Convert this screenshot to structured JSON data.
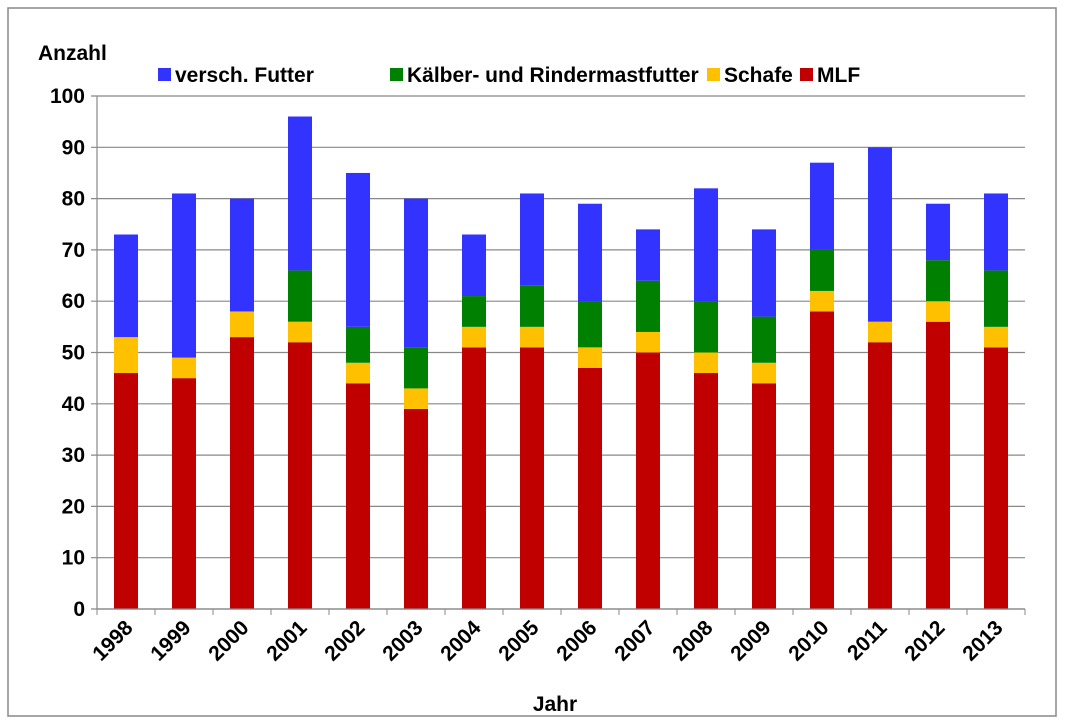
{
  "chart_data": {
    "type": "stacked_bar",
    "y_label": "Anzahl",
    "x_label": "Jahr",
    "categories": [
      "1998",
      "1999",
      "2000",
      "2001",
      "2002",
      "2003",
      "2004",
      "2005",
      "2006",
      "2007",
      "2008",
      "2009",
      "2010",
      "2011",
      "2012",
      "2013"
    ],
    "series": [
      {
        "name": "versch. Futter",
        "color": "#3333ff",
        "values": [
          20,
          32,
          22,
          30,
          30,
          29,
          12,
          18,
          19,
          10,
          22,
          17,
          17,
          34,
          11,
          15
        ]
      },
      {
        "name": "Kälber- und Rindermastfutter",
        "color": "#008000",
        "values": [
          0,
          0,
          0,
          10,
          7,
          8,
          6,
          8,
          9,
          10,
          10,
          9,
          8,
          0,
          8,
          11
        ]
      },
      {
        "name": "Schafe",
        "color": "#ffc000",
        "values": [
          7,
          4,
          5,
          4,
          4,
          4,
          4,
          4,
          4,
          4,
          4,
          4,
          4,
          4,
          4,
          4
        ]
      },
      {
        "name": "MLF",
        "color": "#c00000",
        "values": [
          46,
          45,
          53,
          52,
          44,
          39,
          51,
          51,
          47,
          50,
          46,
          44,
          58,
          52,
          56,
          51
        ]
      }
    ],
    "ylim": [
      0,
      100
    ],
    "yticks": [
      0,
      10,
      20,
      30,
      40,
      50,
      60,
      70,
      80,
      90,
      100
    ],
    "grid": true
  }
}
